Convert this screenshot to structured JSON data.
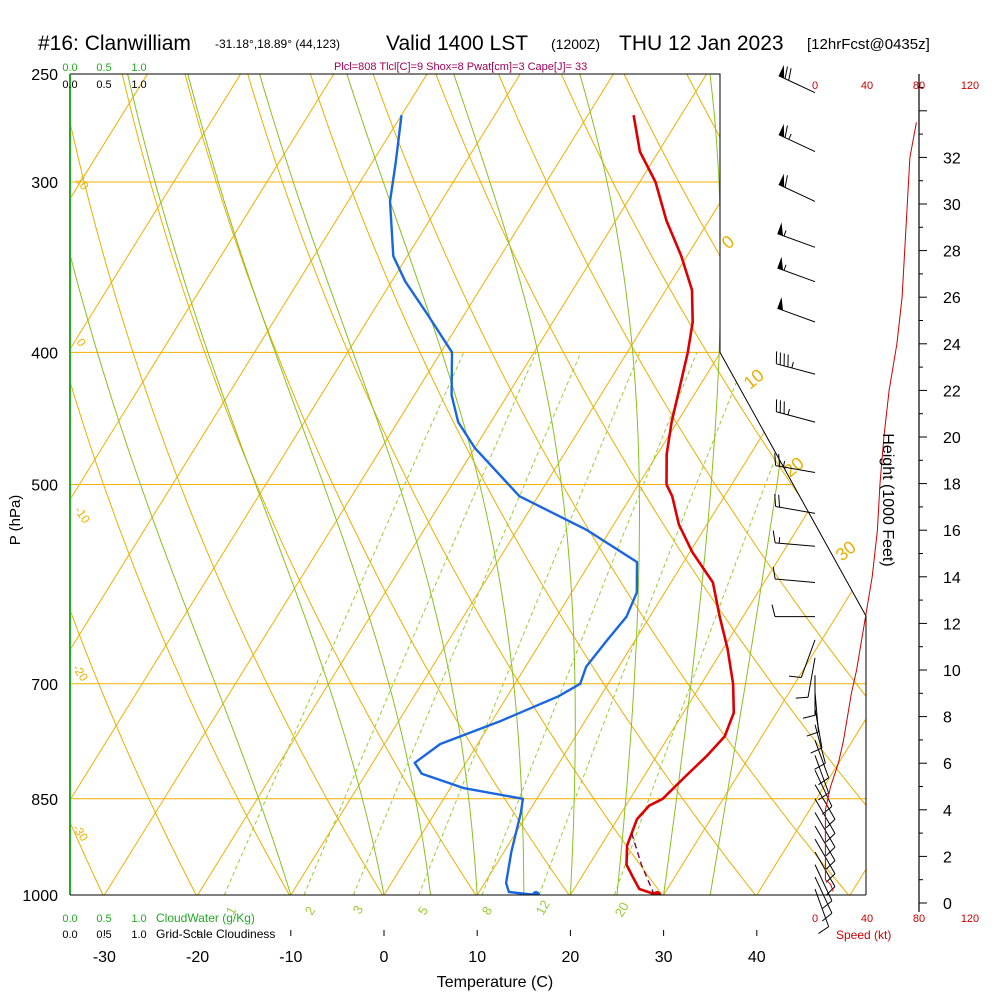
{
  "header": {
    "station": "#16: Clanwilliam",
    "coords": "-31.18°,18.89° (44,123)",
    "valid": "Valid 1400 LST",
    "utc": "(1200Z)",
    "date": "THU 12 Jan 2023",
    "forecast": "[12hrFcst@0435z]",
    "indices": "Plcl=808 Tlcl[C]=9 Shox=8 Pwat[cm]=3 Cape[J]= 33"
  },
  "colors": {
    "temperature": "#dd0000",
    "dewpoint": "#1a66e0",
    "isotherm": "#f0b000",
    "dry_adiabat": "#e8b000",
    "moist_adiabat": "#88c020",
    "mixing_ratio": "#99cc33",
    "parcel": "#7a0040",
    "cloud": "#22aa22",
    "wind_speed": "#cc0000"
  },
  "chart_data": {
    "type": "line",
    "title": "#16: Clanwilliam  Valid 1400 LST (1200Z) THU 12 Jan 2023 [12hrFcst@0435z]",
    "xlabel": "Temperature (C)",
    "ylabel": "P (hPa)",
    "y2label": "Height (1000 Feet)",
    "speed_label": "Speed (kt)",
    "y_scale": "log",
    "skew": "skew-T",
    "grid": true,
    "xlim": [
      -35,
      36
    ],
    "ylim": [
      1000,
      250
    ],
    "x_ticks": [
      -30,
      -20,
      -10,
      0,
      10,
      20,
      30,
      40
    ],
    "p_ticks": [
      250,
      300,
      400,
      500,
      700,
      850,
      1000
    ],
    "height_ticks": [
      0,
      2,
      4,
      6,
      8,
      10,
      12,
      14,
      16,
      18,
      20,
      22,
      24,
      26,
      28,
      30,
      32
    ],
    "speed_ticks": [
      "0",
      "40",
      "80",
      "120"
    ],
    "cloud_ticks": [
      "0.0",
      "0.5",
      "1.0"
    ],
    "cloud_water_label": "CloudWater (g/Kg)",
    "cloudiness_label": "Grid-Scale Cloudiness",
    "isotherm_labels": [
      "10",
      "0",
      "-10",
      "-20",
      "-30"
    ],
    "dry_adiabat_labels": [
      "0",
      "10",
      "20",
      "30"
    ],
    "mixing_ratio_labels": [
      "1",
      "2",
      "3",
      "5",
      "8",
      "12",
      "20"
    ],
    "series": [
      {
        "name": "Temperature",
        "points": [
          [
            29.3,
            1000
          ],
          [
            27,
            990
          ],
          [
            25.5,
            970
          ],
          [
            24,
            950
          ],
          [
            22.8,
            920
          ],
          [
            22.1,
            880
          ],
          [
            22.5,
            860
          ],
          [
            23.5,
            850
          ],
          [
            24.4,
            820
          ],
          [
            25.4,
            790
          ],
          [
            26.0,
            765
          ],
          [
            25.4,
            735
          ],
          [
            23.4,
            700
          ],
          [
            20.5,
            660
          ],
          [
            17.5,
            625
          ],
          [
            14.5,
            590
          ],
          [
            10.2,
            560
          ],
          [
            7.0,
            535
          ],
          [
            4.4,
            510
          ],
          [
            3.0,
            500
          ],
          [
            1.0,
            475
          ],
          [
            -0.6,
            450
          ],
          [
            -2.0,
            425
          ],
          [
            -3.5,
            400
          ],
          [
            -5.0,
            380
          ],
          [
            -7.2,
            360
          ],
          [
            -10.6,
            340
          ],
          [
            -14.6,
            320
          ],
          [
            -18.3,
            300
          ],
          [
            -22.0,
            285
          ],
          [
            -25.1,
            268
          ]
        ]
      },
      {
        "name": "Dewpoint",
        "points": [
          [
            16.3,
            1000
          ],
          [
            13.2,
            995
          ],
          [
            12.3,
            980
          ],
          [
            10.8,
            930
          ],
          [
            9.2,
            870
          ],
          [
            8.5,
            850
          ],
          [
            1.5,
            835
          ],
          [
            -4.0,
            815
          ],
          [
            -5.5,
            800
          ],
          [
            -4.0,
            775
          ],
          [
            1.0,
            745
          ],
          [
            5.5,
            715
          ],
          [
            7.0,
            700
          ],
          [
            6.5,
            680
          ],
          [
            7.0,
            650
          ],
          [
            7.5,
            625
          ],
          [
            7.0,
            600
          ],
          [
            5.0,
            570
          ],
          [
            -2.5,
            540
          ],
          [
            -12.0,
            510
          ],
          [
            -20.0,
            470
          ],
          [
            -23.5,
            450
          ],
          [
            -26.0,
            430
          ],
          [
            -28.8,
            400
          ],
          [
            -34.0,
            375
          ],
          [
            -38.5,
            355
          ],
          [
            -41.5,
            340
          ],
          [
            -45.5,
            310
          ],
          [
            -47.5,
            290
          ],
          [
            -50.0,
            268
          ]
        ]
      },
      {
        "name": "Parcel",
        "points": [
          [
            29.0,
            1000
          ],
          [
            25.6,
            950
          ],
          [
            22.4,
            900
          ]
        ]
      }
    ],
    "markers": {
      "surface_temperature": 29.3,
      "surface_dewpoint": 16.3,
      "surface_pressure": 1000
    },
    "wind_speed_profile": {
      "height_kft": [
        0.5,
        0.8,
        1,
        2,
        3,
        4,
        5,
        6,
        7,
        8,
        9,
        10,
        12,
        14,
        16,
        18,
        20,
        21,
        22,
        24,
        26,
        28,
        30,
        32,
        33.5
      ],
      "speed_kt": [
        14,
        12,
        8,
        8,
        8,
        8,
        12,
        18,
        22,
        25,
        28,
        32,
        38,
        44,
        48,
        50,
        53,
        55,
        57,
        63,
        67,
        69,
        71,
        73,
        78
      ]
    },
    "wind_barbs": [
      {
        "p": 258,
        "dir": 295,
        "kt": 70
      },
      {
        "p": 285,
        "dir": 295,
        "kt": 65
      },
      {
        "p": 310,
        "dir": 295,
        "kt": 60
      },
      {
        "p": 335,
        "dir": 290,
        "kt": 55
      },
      {
        "p": 355,
        "dir": 290,
        "kt": 55
      },
      {
        "p": 380,
        "dir": 290,
        "kt": 50
      },
      {
        "p": 415,
        "dir": 285,
        "kt": 45
      },
      {
        "p": 450,
        "dir": 285,
        "kt": 35
      },
      {
        "p": 490,
        "dir": 280,
        "kt": 25
      },
      {
        "p": 525,
        "dir": 280,
        "kt": 20
      },
      {
        "p": 555,
        "dir": 275,
        "kt": 15
      },
      {
        "p": 590,
        "dir": 275,
        "kt": 12
      },
      {
        "p": 625,
        "dir": 270,
        "kt": 10
      },
      {
        "p": 650,
        "dir": 200,
        "kt": 10
      },
      {
        "p": 670,
        "dir": 190,
        "kt": 10
      },
      {
        "p": 690,
        "dir": 180,
        "kt": 10
      },
      {
        "p": 710,
        "dir": 175,
        "kt": 10
      },
      {
        "p": 730,
        "dir": 170,
        "kt": 10
      },
      {
        "p": 750,
        "dir": 165,
        "kt": 10
      },
      {
        "p": 770,
        "dir": 160,
        "kt": 10
      },
      {
        "p": 790,
        "dir": 160,
        "kt": 10
      },
      {
        "p": 810,
        "dir": 155,
        "kt": 10
      },
      {
        "p": 830,
        "dir": 150,
        "kt": 10
      },
      {
        "p": 850,
        "dir": 150,
        "kt": 10
      },
      {
        "p": 870,
        "dir": 150,
        "kt": 10
      },
      {
        "p": 890,
        "dir": 150,
        "kt": 10
      },
      {
        "p": 910,
        "dir": 150,
        "kt": 10
      },
      {
        "p": 930,
        "dir": 150,
        "kt": 10
      },
      {
        "p": 950,
        "dir": 155,
        "kt": 10
      },
      {
        "p": 970,
        "dir": 155,
        "kt": 10
      },
      {
        "p": 990,
        "dir": 160,
        "kt": 10
      }
    ]
  }
}
